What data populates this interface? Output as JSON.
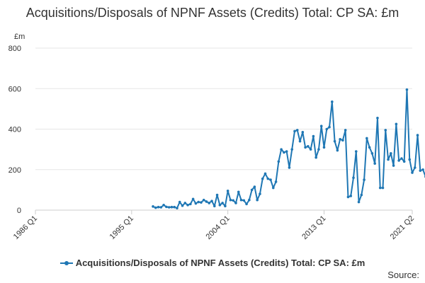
{
  "title": "Acquisitions/Disposals of NPNF Assets (Credits) Total: CP SA: £m",
  "source_label": "Source:",
  "colors": {
    "series": "#1f77b4",
    "grid": "#e6e6e6",
    "axis": "#cccccc",
    "text": "#333333"
  },
  "chart_data": {
    "type": "line",
    "title": "Acquisitions/Disposals of NPNF Assets (Credits) Total: CP SA: £m",
    "ylabel": "£m",
    "xlabel": "",
    "ylim": [
      0,
      800
    ],
    "yticks": [
      "0",
      "200",
      "400",
      "600",
      "800"
    ],
    "xlim": [
      "1986 Q1",
      "2021 Q2"
    ],
    "xticks": [
      "1986 Q1",
      "1995 Q1",
      "2004 Q1",
      "2013 Q1",
      "2021 Q2"
    ],
    "grid": true,
    "legend_position": "bottom",
    "series": [
      {
        "name": "Acquisitions/Disposals of NPNF Assets (Credits) Total: CP SA: £m",
        "x_start": "1997 Q1",
        "values": [
          18,
          12,
          15,
          14,
          25,
          16,
          14,
          15,
          15,
          10,
          40,
          22,
          35,
          25,
          30,
          55,
          33,
          40,
          38,
          50,
          42,
          35,
          45,
          20,
          75,
          25,
          35,
          20,
          95,
          50,
          48,
          35,
          90,
          50,
          48,
          30,
          50,
          100,
          115,
          50,
          80,
          155,
          180,
          155,
          150,
          110,
          140,
          240,
          300,
          285,
          290,
          210,
          300,
          390,
          395,
          340,
          385,
          310,
          315,
          300,
          365,
          260,
          300,
          415,
          310,
          400,
          410,
          535,
          340,
          295,
          350,
          345,
          395,
          65,
          70,
          160,
          290,
          40,
          75,
          150,
          355,
          310,
          280,
          230,
          455,
          110,
          110,
          395,
          250,
          280,
          220,
          425,
          245,
          255,
          240,
          595,
          250,
          185,
          210,
          370,
          195,
          200,
          165
        ]
      }
    ]
  }
}
